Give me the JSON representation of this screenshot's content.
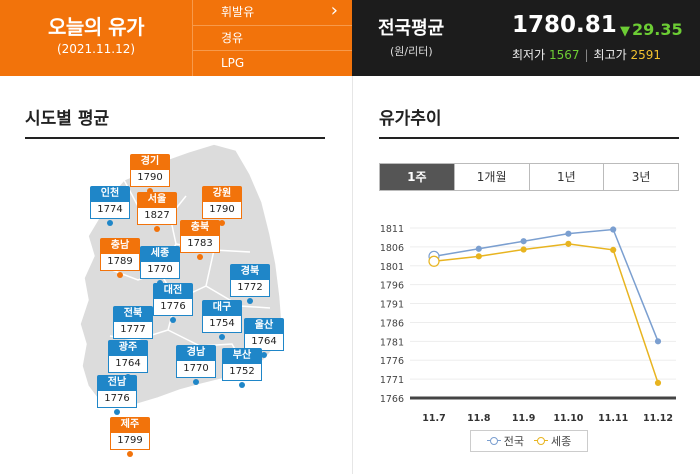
{
  "header": {
    "title": "오늘의 유가",
    "date": "(2021.11.12)",
    "fuel_tabs": [
      "휘발유",
      "경유",
      "LPG"
    ],
    "national": {
      "title": "전국평균",
      "unit": "(원/리터)",
      "price": "1780.81",
      "change": "29.35",
      "change_direction": "down",
      "min_label": "최저가",
      "min_value": "1567",
      "max_label": "최고가",
      "max_value": "2591"
    }
  },
  "map_section": {
    "title": "시도별 평균",
    "regions": [
      {
        "name": "경기",
        "value": "1790",
        "color": "orange"
      },
      {
        "name": "인천",
        "value": "1774",
        "color": "blue"
      },
      {
        "name": "서울",
        "value": "1827",
        "color": "orange"
      },
      {
        "name": "강원",
        "value": "1790",
        "color": "orange"
      },
      {
        "name": "충북",
        "value": "1783",
        "color": "orange"
      },
      {
        "name": "충남",
        "value": "1789",
        "color": "orange"
      },
      {
        "name": "세종",
        "value": "1770",
        "color": "blue"
      },
      {
        "name": "경북",
        "value": "1772",
        "color": "blue"
      },
      {
        "name": "대전",
        "value": "1776",
        "color": "blue"
      },
      {
        "name": "전북",
        "value": "1777",
        "color": "blue"
      },
      {
        "name": "대구",
        "value": "1754",
        "color": "blue"
      },
      {
        "name": "울산",
        "value": "1764",
        "color": "blue"
      },
      {
        "name": "광주",
        "value": "1764",
        "color": "blue"
      },
      {
        "name": "경남",
        "value": "1770",
        "color": "blue"
      },
      {
        "name": "부산",
        "value": "1752",
        "color": "blue"
      },
      {
        "name": "전남",
        "value": "1776",
        "color": "blue"
      },
      {
        "name": "제주",
        "value": "1799",
        "color": "orange"
      }
    ]
  },
  "trend_section": {
    "title": "유가추이",
    "periods": [
      "1주",
      "1개월",
      "1년",
      "3년"
    ],
    "active_period": "1주"
  },
  "colors": {
    "accent_orange": "#f2730b",
    "accent_blue": "#1f86c8",
    "header_dark": "#1c1c1c",
    "down_green": "#6ccc34",
    "max_yellow": "#f2c12e",
    "series_national": "#7b9fd0",
    "series_sejong": "#e8b420"
  },
  "chart_data": {
    "type": "line",
    "categories": [
      "11.7",
      "11.8",
      "11.9",
      "11.10",
      "11.11",
      "11.12"
    ],
    "y_ticks": [
      1766,
      1771,
      1776,
      1781,
      1786,
      1791,
      1796,
      1801,
      1806,
      1811
    ],
    "ylim": [
      1766,
      1811
    ],
    "grid": true,
    "legend_position": "bottom",
    "series": [
      {
        "name": "전국",
        "values": [
          1803.5,
          1805.5,
          1807.5,
          1809.5,
          1810.6,
          1781.0
        ]
      },
      {
        "name": "세종",
        "values": [
          1802.2,
          1803.5,
          1805.3,
          1806.8,
          1805.2,
          1770.0
        ]
      }
    ]
  }
}
